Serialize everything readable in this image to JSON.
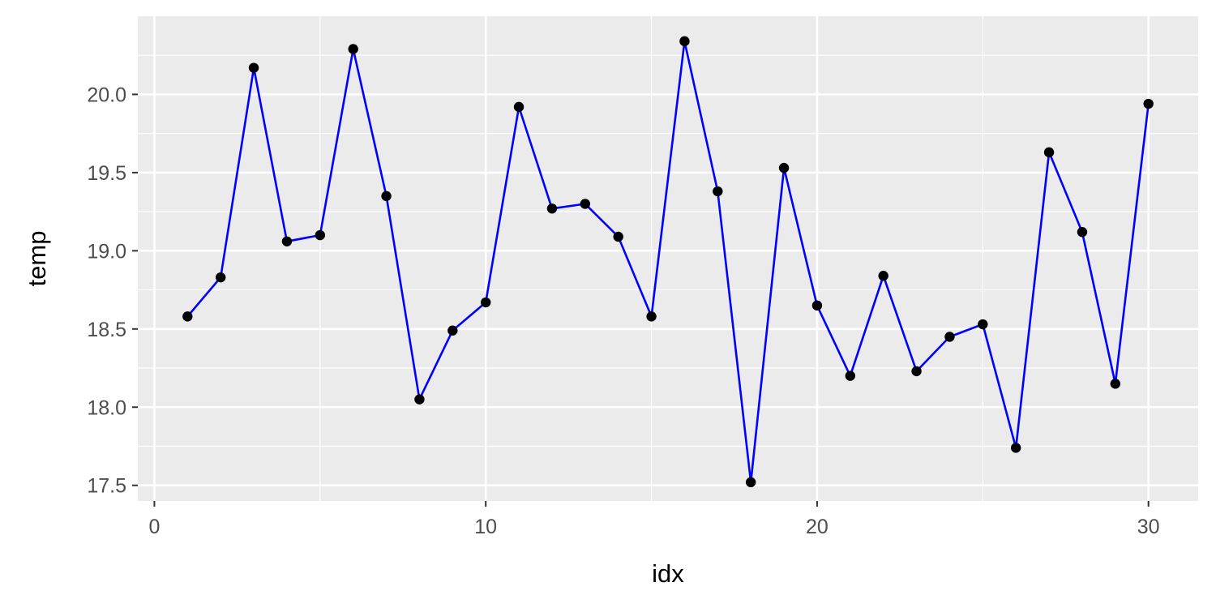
{
  "chart_data": {
    "type": "line",
    "title": "",
    "xlabel": "idx",
    "ylabel": "temp",
    "xlim": [
      -0.5,
      31.5
    ],
    "ylim": [
      17.4,
      20.5
    ],
    "x_ticks": [
      0,
      10,
      20,
      30
    ],
    "x_tick_labels": [
      "0",
      "10",
      "20",
      "30"
    ],
    "y_ticks": [
      17.5,
      18.0,
      18.5,
      19.0,
      19.5,
      20.0
    ],
    "y_tick_labels": [
      "17.5",
      "18.0",
      "18.5",
      "19.0",
      "19.5",
      "20.0"
    ],
    "grid": true,
    "line_color": "#0000ff",
    "point_color": "#000000",
    "panel_background": "#ebebeb",
    "grid_color": "#ffffff",
    "x": [
      1,
      2,
      3,
      4,
      5,
      6,
      7,
      8,
      9,
      10,
      11,
      12,
      13,
      14,
      15,
      16,
      17,
      18,
      19,
      20,
      21,
      22,
      23,
      24,
      25,
      26,
      27,
      28,
      29,
      30
    ],
    "y": [
      18.58,
      18.83,
      20.17,
      19.06,
      19.1,
      20.29,
      19.35,
      18.05,
      18.49,
      18.67,
      19.92,
      19.27,
      19.3,
      19.09,
      18.58,
      20.34,
      19.38,
      17.52,
      19.53,
      18.65,
      18.2,
      18.84,
      18.23,
      18.45,
      18.53,
      17.74,
      19.63,
      19.12,
      18.15,
      19.94
    ]
  }
}
